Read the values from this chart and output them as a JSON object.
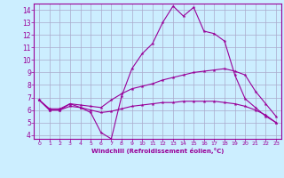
{
  "x_values": [
    0,
    1,
    2,
    3,
    4,
    5,
    6,
    7,
    8,
    9,
    10,
    11,
    12,
    13,
    14,
    15,
    16,
    17,
    18,
    19,
    20,
    21,
    22,
    23
  ],
  "line1": [
    6.8,
    6.0,
    6.0,
    6.5,
    6.2,
    5.8,
    4.2,
    3.7,
    7.1,
    9.3,
    10.5,
    11.3,
    13.0,
    14.3,
    13.5,
    14.2,
    12.3,
    12.1,
    11.5,
    8.8,
    6.9,
    6.2,
    5.5,
    5.0
  ],
  "line2": [
    6.8,
    6.1,
    6.1,
    6.5,
    6.4,
    6.3,
    6.2,
    6.8,
    7.3,
    7.7,
    7.9,
    8.1,
    8.4,
    8.6,
    8.8,
    9.0,
    9.1,
    9.2,
    9.3,
    9.1,
    8.8,
    7.5,
    6.5,
    5.5
  ],
  "line3": [
    6.8,
    6.0,
    6.0,
    6.3,
    6.2,
    6.0,
    5.8,
    5.9,
    6.1,
    6.3,
    6.4,
    6.5,
    6.6,
    6.6,
    6.7,
    6.7,
    6.7,
    6.7,
    6.6,
    6.5,
    6.3,
    6.0,
    5.6,
    5.0
  ],
  "line_color": "#990099",
  "bg_color": "#cceeff",
  "grid_color": "#aaaacc",
  "xlabel": "Windchill (Refroidissement éolien,°C)",
  "ylim": [
    3.7,
    14.5
  ],
  "xlim": [
    -0.5,
    23.5
  ],
  "yticks": [
    4,
    5,
    6,
    7,
    8,
    9,
    10,
    11,
    12,
    13,
    14
  ],
  "xticks": [
    0,
    1,
    2,
    3,
    4,
    5,
    6,
    7,
    8,
    9,
    10,
    11,
    12,
    13,
    14,
    15,
    16,
    17,
    18,
    19,
    20,
    21,
    22,
    23
  ]
}
